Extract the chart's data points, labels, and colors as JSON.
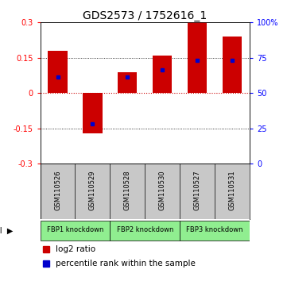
{
  "title": "GDS2573 / 1752616_1",
  "samples": [
    "GSM110526",
    "GSM110529",
    "GSM110528",
    "GSM110530",
    "GSM110527",
    "GSM110531"
  ],
  "log2_ratio": [
    0.18,
    -0.17,
    0.09,
    0.16,
    0.3,
    0.24
  ],
  "percentile_rank": [
    0.07,
    -0.13,
    0.07,
    0.1,
    0.14,
    0.14
  ],
  "left_ylim": [
    -0.3,
    0.3
  ],
  "right_ylim": [
    0,
    100
  ],
  "left_yticks": [
    -0.3,
    -0.15,
    0,
    0.15,
    0.3
  ],
  "right_yticks": [
    0,
    25,
    50,
    75,
    100
  ],
  "protocols": [
    {
      "label": "FBP1 knockdown",
      "start": 0,
      "end": 1,
      "color": "#90EE90"
    },
    {
      "label": "FBP2 knockdown",
      "start": 2,
      "end": 3,
      "color": "#90EE90"
    },
    {
      "label": "FBP3 knockdown",
      "start": 4,
      "end": 5,
      "color": "#90EE90"
    }
  ],
  "bar_color": "#CC0000",
  "marker_color": "#0000CC",
  "bar_width": 0.55,
  "background_color": "#ffffff",
  "label_bg_color": "#C8C8C8",
  "zero_line_color": "#CC0000",
  "dotted_line_color": "#000000",
  "title_fontsize": 10,
  "tick_fontsize": 7,
  "legend_fontsize": 7.5,
  "sample_fontsize": 6
}
